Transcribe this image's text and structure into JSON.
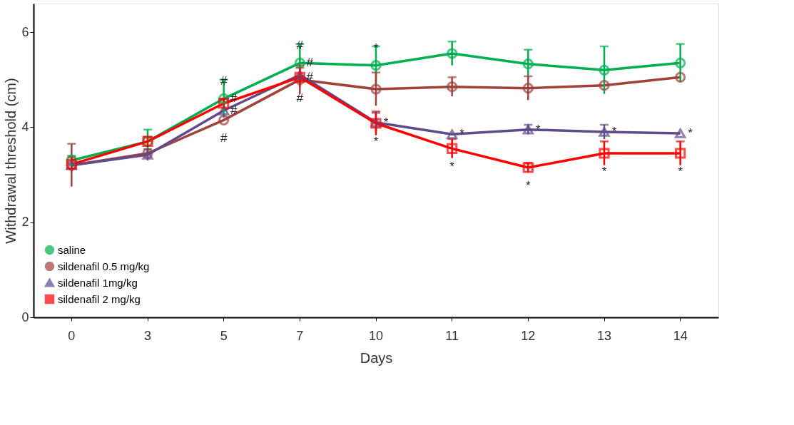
{
  "chart_data": {
    "type": "line",
    "xlabel": "Days",
    "ylabel": "Withdrawal threshold (cm)",
    "categories": [
      "0",
      "3",
      "5",
      "7",
      "10",
      "11",
      "12",
      "13",
      "14"
    ],
    "ylim": [
      0,
      6.6
    ],
    "yticks": [
      0,
      2,
      4,
      6
    ],
    "grid": false,
    "legend": "bottom left",
    "series": [
      {
        "name": "saline",
        "color": "#00b050",
        "marker": "circle",
        "values": [
          3.3,
          3.7,
          4.6,
          5.35,
          5.3,
          5.55,
          5.33,
          5.2,
          5.35
        ],
        "errors": [
          0.1,
          0.25,
          0.4,
          0.4,
          0.4,
          0.25,
          0.3,
          0.5,
          0.4
        ]
      },
      {
        "name": "sildenafil 0.5 mg/kg",
        "color": "#a0413c",
        "marker": "circle",
        "values": [
          3.2,
          3.45,
          4.15,
          5.0,
          4.8,
          4.85,
          4.82,
          4.88,
          5.05
        ],
        "errors": [
          0.45,
          null,
          null,
          0.3,
          0.35,
          0.2,
          0.25,
          null,
          null
        ]
      },
      {
        "name": "sildenafil 1mg/kg",
        "color": "#604a8b",
        "marker": "triangle",
        "values": [
          3.2,
          3.42,
          4.35,
          5.1,
          4.1,
          3.85,
          3.95,
          3.9,
          3.87
        ],
        "errors": [
          null,
          0.12,
          null,
          null,
          0.2,
          null,
          0.1,
          0.15,
          null
        ]
      },
      {
        "name": "sildenafil 2 mg/kg",
        "color": "#ff0000",
        "marker": "square",
        "values": [
          3.22,
          3.7,
          4.5,
          5.05,
          4.08,
          3.55,
          3.15,
          3.45,
          3.45
        ],
        "errors": [
          0.15,
          0.1,
          0.1,
          0.2,
          0.25,
          0.2,
          0.1,
          0.25,
          0.25
        ]
      }
    ],
    "annotations": [
      {
        "text": "#",
        "x": "5",
        "y": 4.6
      },
      {
        "text": "#",
        "x": "5",
        "y": 4.6
      },
      {
        "text": "#",
        "x": "5",
        "y": 4.35
      },
      {
        "text": "#",
        "x": "5",
        "y": 4.15
      },
      {
        "text": "#",
        "x": "7",
        "y": 5.35
      },
      {
        "text": "#",
        "x": "7",
        "y": 5.35
      },
      {
        "text": "#",
        "x": "7",
        "y": 5.05
      },
      {
        "text": "#",
        "x": "7",
        "y": 5.0
      },
      {
        "text": "*",
        "x": "10",
        "y": 5.3
      },
      {
        "text": "*",
        "x": "10",
        "y": 4.1
      },
      {
        "text": "*",
        "x": "10",
        "y": 4.08
      },
      {
        "text": "*",
        "x": "11",
        "y": 3.85
      },
      {
        "text": "*",
        "x": "11",
        "y": 3.55
      },
      {
        "text": "*",
        "x": "12",
        "y": 3.95
      },
      {
        "text": "*",
        "x": "12",
        "y": 3.15
      },
      {
        "text": "*",
        "x": "13",
        "y": 3.9
      },
      {
        "text": "*",
        "x": "13",
        "y": 3.45
      },
      {
        "text": "*",
        "x": "14",
        "y": 3.87
      },
      {
        "text": "*",
        "x": "14",
        "y": 3.45
      }
    ]
  }
}
